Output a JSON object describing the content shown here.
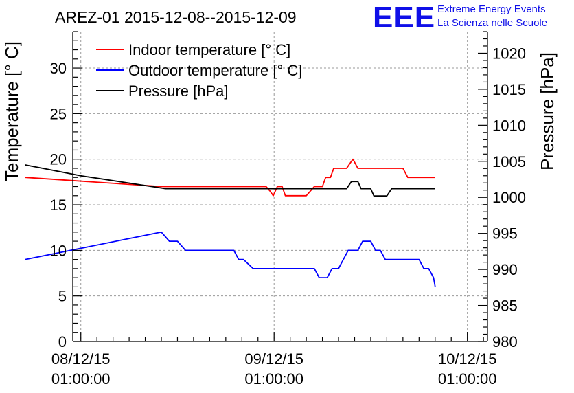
{
  "header": {
    "title": "AREZ-01 2015-12-08--2015-12-09",
    "logo_mark": "EEE",
    "logo_line1": "Extreme Energy Events",
    "logo_line2": "La Scienza nelle Scuole"
  },
  "chart_data": {
    "type": "line",
    "grid": true,
    "legend_position": "top-left",
    "ylabel_left": "Temperature [° C]",
    "ylabel_right": "Pressure [hPa]",
    "ylim_left": [
      0,
      34
    ],
    "ylim_right": [
      980,
      1023
    ],
    "xlim_hours": [
      -1.0,
      50.5
    ],
    "x_ticks": [
      {
        "hour": 0,
        "line1": "08/12/15",
        "line2": "01:00:00"
      },
      {
        "hour": 24,
        "line1": "09/12/15",
        "line2": "01:00:00"
      },
      {
        "hour": 48,
        "line1": "10/12/15",
        "line2": "01:00:00"
      }
    ],
    "y_ticks_left": [
      0,
      5,
      10,
      15,
      20,
      25,
      30
    ],
    "y_ticks_right": [
      980,
      985,
      990,
      995,
      1000,
      1005,
      1010,
      1015,
      1020
    ],
    "series": [
      {
        "name": "Indoor temperature [° C]",
        "axis": "left",
        "color": "#ff0000",
        "points": [
          [
            -6.9,
            18
          ],
          [
            10,
            17
          ],
          [
            10.5,
            17
          ],
          [
            17,
            17
          ],
          [
            23,
            17
          ],
          [
            23.5,
            16.5
          ],
          [
            23.9,
            16
          ],
          [
            24.4,
            17
          ],
          [
            25,
            17
          ],
          [
            25.4,
            16
          ],
          [
            28,
            16
          ],
          [
            29,
            17
          ],
          [
            30,
            17
          ],
          [
            30.4,
            18
          ],
          [
            31,
            18
          ],
          [
            31.4,
            19
          ],
          [
            33,
            19
          ],
          [
            33.4,
            19.5
          ],
          [
            33.8,
            20
          ],
          [
            34.4,
            19
          ],
          [
            40,
            19
          ],
          [
            40.6,
            18
          ],
          [
            44,
            18
          ]
        ]
      },
      {
        "name": "Outdoor temperature [° C]",
        "axis": "left",
        "color": "#0000ff",
        "points": [
          [
            -6.9,
            9
          ],
          [
            10,
            12
          ],
          [
            10.5,
            11.5
          ],
          [
            11,
            11
          ],
          [
            12,
            11
          ],
          [
            12.5,
            10.5
          ],
          [
            13,
            10
          ],
          [
            19,
            10
          ],
          [
            19.6,
            9
          ],
          [
            20.2,
            9
          ],
          [
            20.8,
            8.5
          ],
          [
            21.4,
            8
          ],
          [
            29,
            8
          ],
          [
            29.6,
            7
          ],
          [
            30.6,
            7
          ],
          [
            31.2,
            8
          ],
          [
            32,
            8
          ],
          [
            32.6,
            9
          ],
          [
            33.2,
            10
          ],
          [
            34.4,
            10
          ],
          [
            35,
            11
          ],
          [
            36,
            11
          ],
          [
            36.6,
            10
          ],
          [
            37.2,
            10
          ],
          [
            37.8,
            9
          ],
          [
            42,
            9
          ],
          [
            42.6,
            8
          ],
          [
            43.2,
            8
          ],
          [
            43.8,
            7
          ],
          [
            44,
            6
          ]
        ]
      },
      {
        "name": "Pressure [hPa]",
        "axis": "right",
        "color": "#000000",
        "points": [
          [
            -6.9,
            1004.5
          ],
          [
            0,
            1003
          ],
          [
            10,
            1001.3
          ],
          [
            10.5,
            1001.2
          ],
          [
            29,
            1001.2
          ],
          [
            29.8,
            1001.2
          ],
          [
            30.8,
            1001.2
          ],
          [
            32,
            1001.2
          ],
          [
            33,
            1001.2
          ],
          [
            33.6,
            1002.2
          ],
          [
            34.4,
            1002.2
          ],
          [
            34.8,
            1001.2
          ],
          [
            36,
            1001.2
          ],
          [
            36.4,
            1000.2
          ],
          [
            38,
            1000.2
          ],
          [
            38.6,
            1001.2
          ],
          [
            44,
            1001.2
          ]
        ]
      }
    ]
  }
}
